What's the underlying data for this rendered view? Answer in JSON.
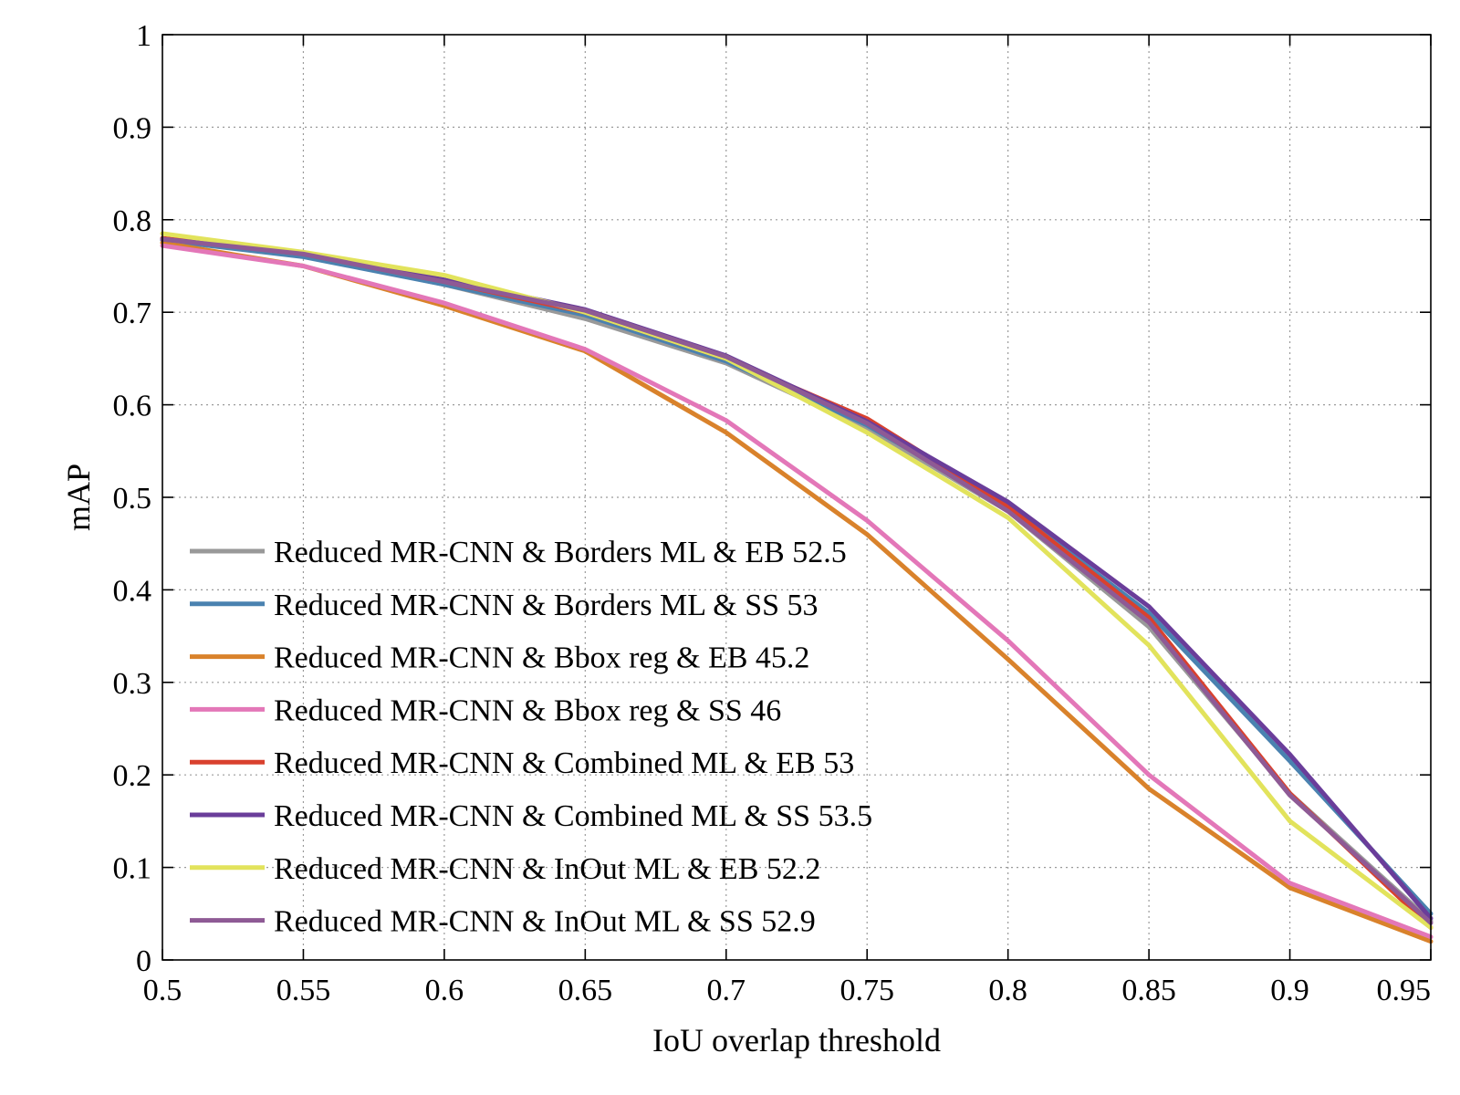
{
  "chart_data": {
    "type": "line",
    "title": "",
    "xlabel": "IoU overlap threshold",
    "ylabel": "mAP",
    "xlim": [
      0.5,
      0.95
    ],
    "ylim": [
      0,
      1
    ],
    "grid": true,
    "legend_position": "bottom-left",
    "x": [
      0.5,
      0.55,
      0.6,
      0.65,
      0.7,
      0.75,
      0.8,
      0.85,
      0.9,
      0.95
    ],
    "x_ticks": [
      0.5,
      0.55,
      0.6,
      0.65,
      0.7,
      0.75,
      0.8,
      0.85,
      0.9,
      0.95
    ],
    "x_tick_labels": [
      "0.5",
      "0.55",
      "0.6",
      "0.65",
      "0.7",
      "0.75",
      "0.8",
      "0.85",
      "0.9",
      "0.95"
    ],
    "y_ticks": [
      0,
      0.1,
      0.2,
      0.3,
      0.4,
      0.5,
      0.6,
      0.7,
      0.8,
      0.9,
      1
    ],
    "y_tick_labels": [
      "0",
      "0.1",
      "0.2",
      "0.3",
      "0.4",
      "0.5",
      "0.6",
      "0.7",
      "0.8",
      "0.9",
      "1"
    ],
    "series": [
      {
        "name": "Reduced MR-CNN & Borders ML & EB 52.5",
        "color": "#999999",
        "values": [
          0.778,
          0.762,
          0.73,
          0.693,
          0.645,
          0.575,
          0.485,
          0.36,
          0.18,
          0.042
        ]
      },
      {
        "name": "Reduced MR-CNN & Borders ML & SS 53",
        "color": "#4a82b0",
        "values": [
          0.778,
          0.76,
          0.73,
          0.697,
          0.647,
          0.578,
          0.49,
          0.375,
          0.215,
          0.05
        ]
      },
      {
        "name": "Reduced MR-CNN & Bbox reg & EB 45.2",
        "color": "#d9822b",
        "values": [
          0.775,
          0.75,
          0.707,
          0.658,
          0.57,
          0.46,
          0.325,
          0.185,
          0.078,
          0.02
        ]
      },
      {
        "name": "Reduced MR-CNN & Bbox reg & SS 46",
        "color": "#e377b8",
        "values": [
          0.772,
          0.75,
          0.71,
          0.66,
          0.583,
          0.475,
          0.345,
          0.2,
          0.083,
          0.025
        ]
      },
      {
        "name": "Reduced MR-CNN & Combined ML & EB 53",
        "color": "#d9412e",
        "values": [
          0.78,
          0.763,
          0.733,
          0.7,
          0.65,
          0.585,
          0.49,
          0.37,
          0.18,
          0.035
        ]
      },
      {
        "name": "Reduced MR-CNN & Combined ML & SS 53.5",
        "color": "#6a3d9a",
        "values": [
          0.779,
          0.764,
          0.735,
          0.703,
          0.653,
          0.582,
          0.495,
          0.382,
          0.222,
          0.045
        ]
      },
      {
        "name": "Reduced MR-CNN & InOut ML & EB 52.2",
        "color": "#e2e35c",
        "values": [
          0.785,
          0.765,
          0.74,
          0.7,
          0.65,
          0.57,
          0.478,
          0.34,
          0.15,
          0.035
        ]
      },
      {
        "name": "Reduced MR-CNN & InOut ML & SS 52.9",
        "color": "#8e5a95",
        "values": [
          0.779,
          0.763,
          0.733,
          0.702,
          0.652,
          0.58,
          0.485,
          0.365,
          0.178,
          0.04
        ]
      }
    ]
  }
}
